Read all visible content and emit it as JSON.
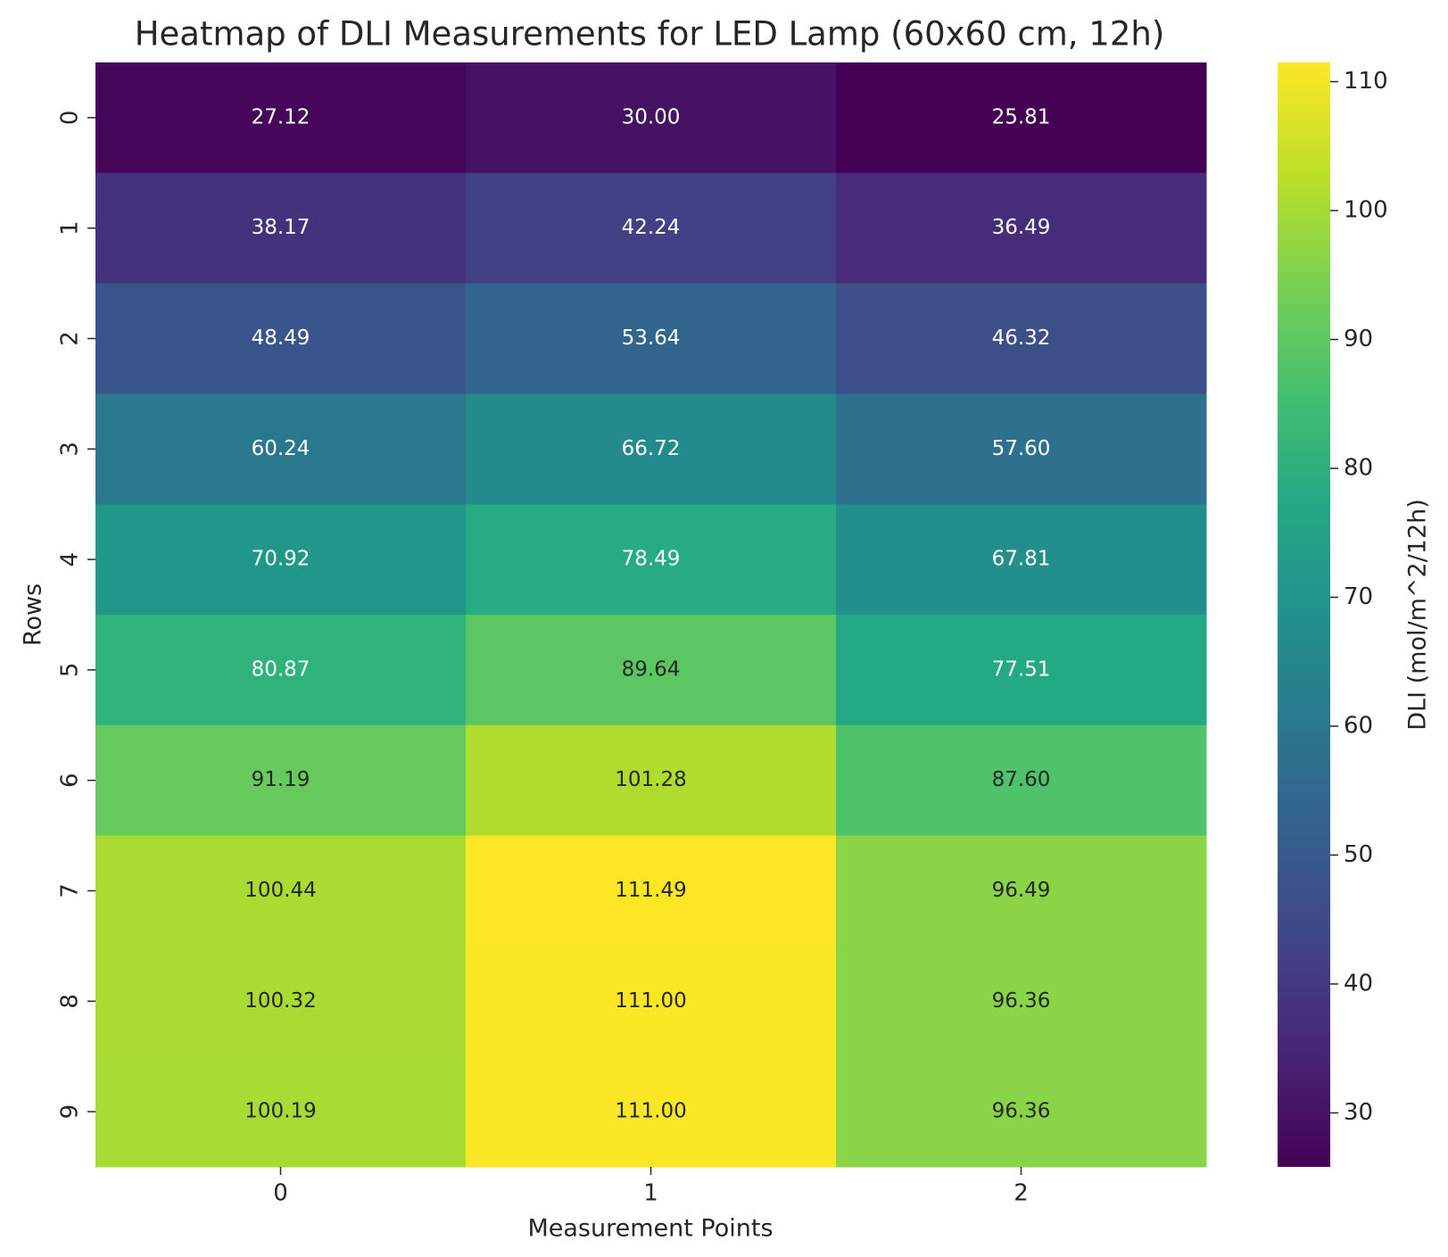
{
  "chart_data": {
    "type": "heatmap",
    "title": "Heatmap of DLI Measurements for LED Lamp (60x60 cm, 12h)",
    "x_label": "Measurement Points",
    "y_label": "Rows",
    "x_categories": [
      "0",
      "1",
      "2"
    ],
    "y_categories": [
      "0",
      "1",
      "2",
      "3",
      "4",
      "5",
      "6",
      "7",
      "8",
      "9"
    ],
    "values": [
      [
        27.12,
        30.0,
        25.81
      ],
      [
        38.17,
        42.24,
        36.49
      ],
      [
        48.49,
        53.64,
        46.32
      ],
      [
        60.24,
        66.72,
        57.6
      ],
      [
        70.92,
        78.49,
        67.81
      ],
      [
        80.87,
        89.64,
        77.51
      ],
      [
        91.19,
        101.28,
        87.6
      ],
      [
        100.44,
        111.49,
        96.49
      ],
      [
        100.32,
        111.0,
        96.36
      ],
      [
        100.19,
        111.0,
        96.36
      ]
    ],
    "value_labels": [
      [
        "27.12",
        "30.00",
        "25.81"
      ],
      [
        "38.17",
        "42.24",
        "36.49"
      ],
      [
        "48.49",
        "53.64",
        "46.32"
      ],
      [
        "60.24",
        "66.72",
        "57.60"
      ],
      [
        "70.92",
        "78.49",
        "67.81"
      ],
      [
        "80.87",
        "89.64",
        "77.51"
      ],
      [
        "91.19",
        "101.28",
        "87.60"
      ],
      [
        "100.44",
        "111.49",
        "96.49"
      ],
      [
        "100.32",
        "111.00",
        "96.36"
      ],
      [
        "100.19",
        "111.00",
        "96.36"
      ]
    ],
    "colormap": "viridis",
    "colorbar_label": "DLI (mol/m^2/12h)",
    "colorbar_lim": [
      25.81,
      111.49
    ],
    "colorbar_ticks": [
      30,
      40,
      50,
      60,
      70,
      80,
      90,
      100,
      110
    ]
  }
}
